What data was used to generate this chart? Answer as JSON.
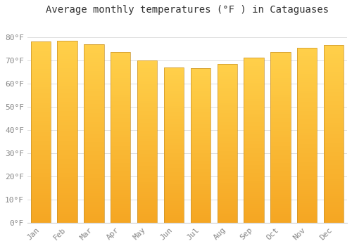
{
  "title": "Average monthly temperatures (°F ) in Cataguases",
  "months": [
    "Jan",
    "Feb",
    "Mar",
    "Apr",
    "May",
    "Jun",
    "Jul",
    "Aug",
    "Sep",
    "Oct",
    "Nov",
    "Dec"
  ],
  "values": [
    78,
    78.5,
    77,
    73.5,
    70,
    67,
    66.5,
    68.5,
    71,
    73.5,
    75.5,
    76.5
  ],
  "bar_color_bottom": "#F5A623",
  "bar_color_top": "#FFD04A",
  "bar_edge_color": "#C8922A",
  "background_color": "#FFFFFF",
  "grid_color": "#DDDDDD",
  "text_color": "#888888",
  "ylim": [
    0,
    88
  ],
  "yticks": [
    0,
    10,
    20,
    30,
    40,
    50,
    60,
    70,
    80
  ],
  "ytick_labels": [
    "0°F",
    "10°F",
    "20°F",
    "30°F",
    "40°F",
    "50°F",
    "60°F",
    "70°F",
    "80°F"
  ],
  "title_fontsize": 10,
  "tick_fontsize": 8,
  "bar_width": 0.75
}
